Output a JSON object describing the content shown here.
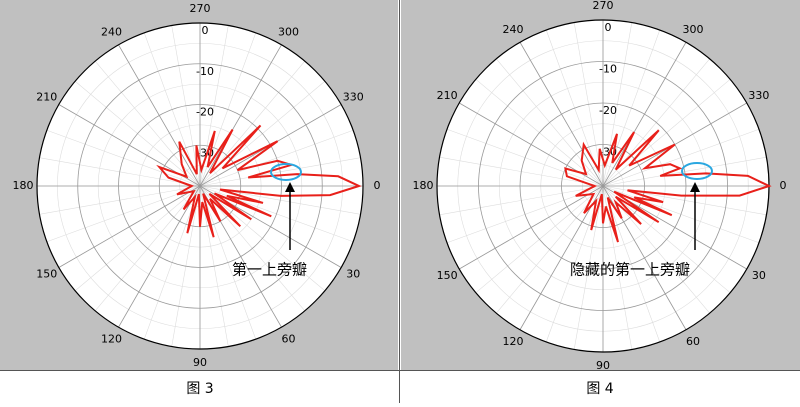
{
  "chart_data": [
    {
      "type": "polar",
      "title": "图 3",
      "annotation": "第一上旁瓣",
      "x": [
        0,
        4,
        7,
        10,
        15,
        20,
        23,
        27,
        33,
        40,
        45,
        52,
        60,
        68,
        75,
        82,
        90,
        98,
        105,
        115,
        125,
        140,
        160,
        180,
        195,
        205,
        215,
        230,
        245,
        255,
        265,
        275,
        285,
        292,
        300,
        308,
        315,
        322,
        330,
        337,
        342,
        347,
        350,
        353,
        356
      ],
      "values": [
        -1,
        -8,
        -20,
        -35,
        -24,
        -33,
        -21,
        -36,
        -25,
        -37,
        -26,
        -36,
        -30,
        -38,
        -27,
        -36,
        -30,
        -38,
        -28,
        -37,
        -33,
        -38,
        -34,
        -38,
        -32,
        -29,
        -36,
        -33,
        -28,
        -37,
        -30,
        -36,
        -26,
        -35,
        -24,
        -36,
        -19,
        -33,
        -18,
        -30,
        -20,
        -17,
        -28,
        -16,
        -6
      ],
      "color": "#e8201a",
      "ylim": [
        -40,
        0
      ],
      "yticks": [
        0,
        -10,
        -20,
        -30
      ],
      "xticks": [
        0,
        30,
        60,
        90,
        120,
        150,
        180,
        210,
        240,
        270,
        300,
        330
      ],
      "grid": true
    },
    {
      "type": "polar",
      "title": "图 4",
      "annotation": "隐藏的第一上旁瓣",
      "x": [
        0,
        4,
        7,
        10,
        15,
        20,
        23,
        27,
        33,
        40,
        45,
        52,
        60,
        68,
        75,
        82,
        90,
        98,
        105,
        115,
        125,
        140,
        160,
        180,
        195,
        205,
        215,
        230,
        245,
        255,
        265,
        275,
        285,
        292,
        300,
        308,
        315,
        322,
        330,
        337,
        342,
        347,
        350,
        353,
        356
      ],
      "values": [
        0,
        -7,
        -21,
        -34,
        -25,
        -32,
        -22,
        -37,
        -24,
        -36,
        -27,
        -35,
        -31,
        -37,
        -26,
        -35,
        -31,
        -38,
        -29,
        -36,
        -32,
        -37,
        -33,
        -38,
        -31,
        -30,
        -35,
        -32,
        -29,
        -36,
        -31,
        -35,
        -27,
        -34,
        -25,
        -35,
        -21,
        -32,
        -20,
        -29,
        -23,
        -21,
        -26,
        -15,
        -5
      ],
      "color": "#e8201a",
      "ylim": [
        -40,
        0
      ],
      "yticks": [
        0,
        -10,
        -20,
        -30
      ],
      "xticks": [
        0,
        30,
        60,
        90,
        120,
        150,
        180,
        210,
        240,
        270,
        300,
        330
      ],
      "grid": true
    }
  ]
}
